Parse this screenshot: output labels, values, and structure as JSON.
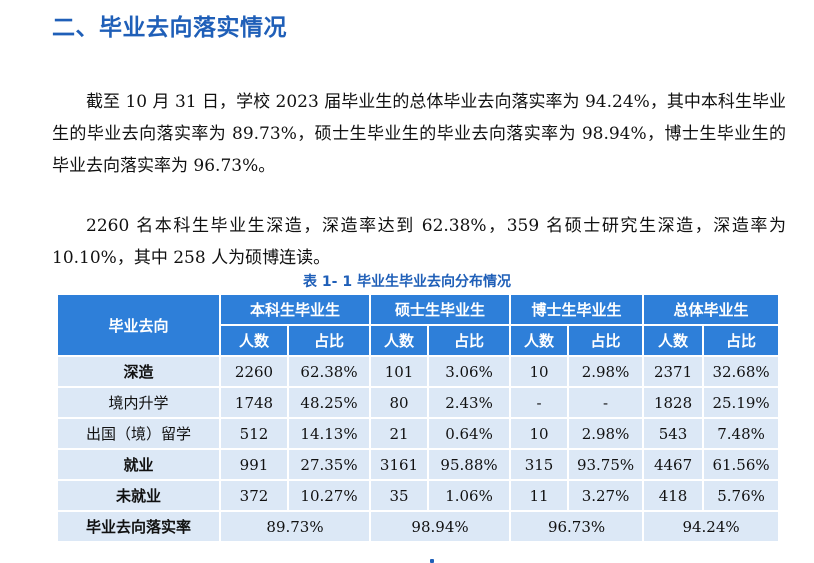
{
  "heading": "二、毕业去向落实情况",
  "paragraphs": [
    "截至 10 月 31 日，学校 2023 届毕业生的总体毕业去向落实率为 94.24%，其中本科生毕业生的毕业去向落实率为 89.73%，硕士生毕业生的毕业去向落实率为 98.94%，博士生毕业生的毕业去向落实率为 96.73%。",
    "2260 名本科生毕业生深造，深造率达到 62.38%，359 名硕士研究生深造，深造率为 10.10%，其中 258 人为硕博连读。"
  ],
  "table": {
    "caption": "表 1- 1  毕业生毕业去向分布情况",
    "row_header": "毕业去向",
    "groups": [
      "本科生毕业生",
      "硕士生毕业生",
      "博士生毕业生",
      "总体毕业生"
    ],
    "sub_headers": [
      "人数",
      "占比",
      "人数",
      "占比",
      "人数",
      "占比",
      "人数",
      "占比"
    ],
    "rows": [
      {
        "label": "深造",
        "bold": true,
        "cells": [
          "2260",
          "62.38%",
          "101",
          "3.06%",
          "10",
          "2.98%",
          "2371",
          "32.68%"
        ]
      },
      {
        "label": "境内升学",
        "bold": false,
        "cells": [
          "1748",
          "48.25%",
          "80",
          "2.43%",
          "-",
          "-",
          "1828",
          "25.19%"
        ]
      },
      {
        "label": "出国（境）留学",
        "bold": false,
        "cells": [
          "512",
          "14.13%",
          "21",
          "0.64%",
          "10",
          "2.98%",
          "543",
          "7.48%"
        ]
      },
      {
        "label": "就业",
        "bold": true,
        "cells": [
          "991",
          "27.35%",
          "3161",
          "95.88%",
          "315",
          "93.75%",
          "4467",
          "61.56%"
        ]
      },
      {
        "label": "未就业",
        "bold": true,
        "cells": [
          "372",
          "10.27%",
          "35",
          "1.06%",
          "11",
          "3.27%",
          "418",
          "5.76%"
        ]
      }
    ],
    "rate_row": {
      "label": "毕业去向落实率",
      "values": [
        "89.73%",
        "98.94%",
        "96.73%",
        "94.24%"
      ]
    }
  }
}
